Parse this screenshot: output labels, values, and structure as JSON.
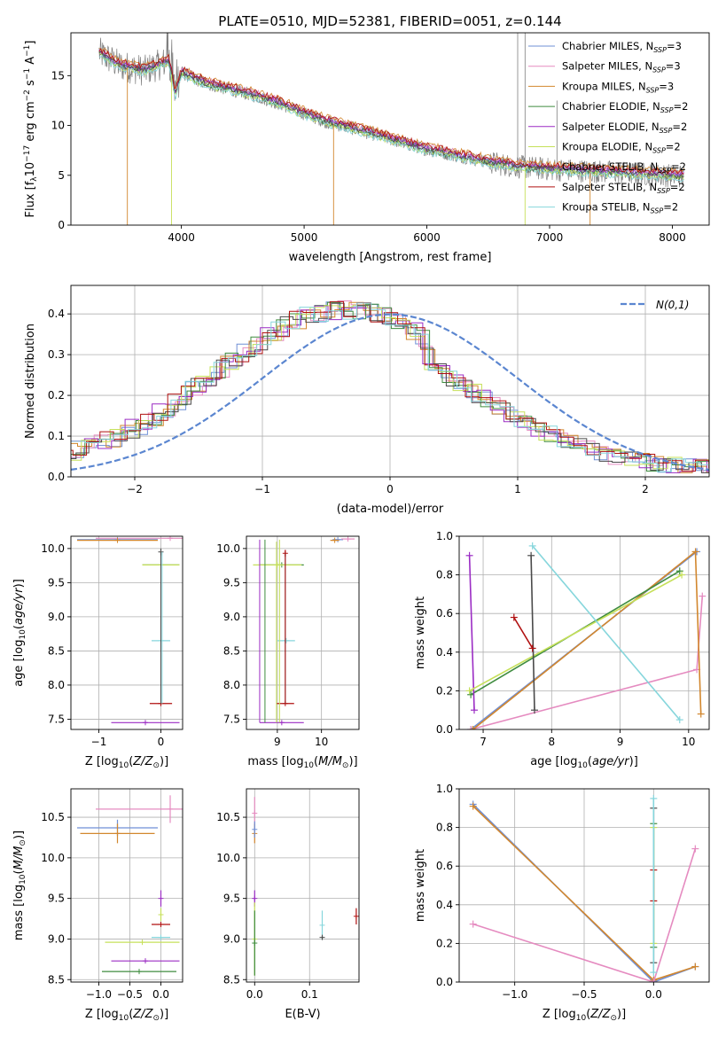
{
  "title": "PLATE=0510, MJD=52381, FIBERID=0051, z=0.144",
  "colors": {
    "Chabrier MILES": "#6f8fd6",
    "Salpeter MILES": "#e58bc0",
    "Kroupa MILES": "#d2872e",
    "Chabrier ELODIE": "#3f8c3f",
    "Salpeter ELODIE": "#9b2cc4",
    "Kroupa ELODIE": "#c6e05a",
    "Chabrier STELIB": "#4a4a4a",
    "Salpeter STELIB": "#b01010",
    "Kroupa STELIB": "#86d6dc",
    "data": "#7f7f7f",
    "gauss": "#5b86d0",
    "grid": "#b0b0b0"
  },
  "chart_data": [
    {
      "id": "spectrum",
      "type": "line",
      "xlabel": "wavelength [Angstrom, rest frame]",
      "ylabel": "Flux [f",
      "xlim": [
        3100,
        8300
      ],
      "ylim": [
        0,
        19.3
      ],
      "xticks": [
        4000,
        5000,
        6000,
        7000,
        8000
      ],
      "yticks": [
        0,
        5,
        10,
        15
      ],
      "legend_location": "upper-right",
      "legend": [
        {
          "name": "Chabrier MILES",
          "nssp": "3"
        },
        {
          "name": "Salpeter MILES",
          "nssp": "3"
        },
        {
          "name": "Kroupa MILES",
          "nssp": "3"
        },
        {
          "name": "Chabrier ELODIE",
          "nssp": "2"
        },
        {
          "name": "Salpeter ELODIE",
          "nssp": "2"
        },
        {
          "name": "Kroupa ELODIE",
          "nssp": "2"
        },
        {
          "name": "Chabrier STELIB",
          "nssp": "2"
        },
        {
          "name": "Salpeter STELIB",
          "nssp": "2"
        },
        {
          "name": "Kroupa STELIB",
          "nssp": "2"
        }
      ],
      "data_anchors": [
        [
          3330,
          17.3
        ],
        [
          3500,
          16.0
        ],
        [
          3700,
          15.5
        ],
        [
          3800,
          16.0
        ],
        [
          3900,
          16.5
        ],
        [
          3950,
          13.0
        ],
        [
          4000,
          15.3
        ],
        [
          4200,
          14.2
        ],
        [
          4400,
          13.6
        ],
        [
          4600,
          13.0
        ],
        [
          4800,
          12.2
        ],
        [
          5000,
          11.2
        ],
        [
          5200,
          10.3
        ],
        [
          5400,
          9.7
        ],
        [
          5600,
          9.0
        ],
        [
          5800,
          8.3
        ],
        [
          6000,
          7.6
        ],
        [
          6200,
          7.1
        ],
        [
          6400,
          6.6
        ],
        [
          6600,
          6.1
        ],
        [
          6800,
          5.8
        ],
        [
          7000,
          5.6
        ],
        [
          7200,
          5.5
        ],
        [
          7500,
          5.3
        ],
        [
          7800,
          5.1
        ],
        [
          8100,
          4.9
        ]
      ]
    },
    {
      "id": "residuals",
      "type": "line",
      "xlabel": "(data-model)/error",
      "ylabel": "Normed distribution",
      "xlim": [
        -2.5,
        2.5
      ],
      "ylim": [
        0,
        0.47
      ],
      "xticks": [
        -2,
        -1,
        0,
        1,
        2
      ],
      "yticks": [
        0.0,
        0.1,
        0.2,
        0.3,
        0.4
      ],
      "legend_location": "upper-right",
      "gauss_label": "N(0,1)"
    },
    {
      "id": "age-vs-Z",
      "type": "scatter",
      "xlabel": "Z [log",
      "ylabel": "age  [log",
      "xlim": [
        -1.45,
        0.35
      ],
      "ylim": [
        7.35,
        10.18
      ],
      "xticks": [
        -1,
        0
      ],
      "yticks": [
        7.5,
        8.0,
        8.5,
        9.0,
        9.5,
        10.0
      ],
      "points": [
        {
          "model": "Chabrier MILES",
          "x": -0.7,
          "y": 10.13,
          "xerr": 0.65
        },
        {
          "model": "Salpeter MILES",
          "x": 0.15,
          "y": 10.15,
          "xerr": 1.2
        },
        {
          "model": "Kroupa MILES",
          "x": -0.7,
          "y": 10.12,
          "xerr": 0.65
        },
        {
          "model": "Chabrier ELODIE",
          "x": 0.0,
          "y": 9.76,
          "xerr": 0.3
        },
        {
          "model": "Kroupa ELODIE",
          "x": 0.0,
          "y": 9.76,
          "xerr": 0.3
        },
        {
          "model": "Chabrier STELIB",
          "x": 0.0,
          "y": 9.95,
          "yerr": 0.05
        },
        {
          "model": "Kroupa STELIB",
          "x": 0.0,
          "y": 8.65,
          "xerr": 0.15
        },
        {
          "model": "Salpeter STELIB",
          "x": 0.0,
          "y": 7.73,
          "xerr": 0.18
        },
        {
          "model": "Salpeter ELODIE",
          "x": -0.25,
          "y": 7.45,
          "xerr": 0.55
        }
      ]
    },
    {
      "id": "age-vs-mass",
      "type": "scatter",
      "xlabel": "mass [log",
      "ylabel": "",
      "xlim": [
        8.3,
        10.85
      ],
      "ylim": [
        7.35,
        10.18
      ],
      "xticks": [
        9,
        10
      ],
      "yticks": [
        7.5,
        8.0,
        8.5,
        9.0,
        9.5,
        10.0
      ],
      "points": [
        {
          "model": "Chabrier MILES",
          "x": 10.37,
          "y": 10.13,
          "xerr": 0.12
        },
        {
          "model": "Salpeter MILES",
          "x": 10.6,
          "y": 10.14,
          "xerr": 0.15
        },
        {
          "model": "Kroupa MILES",
          "x": 10.3,
          "y": 10.12,
          "xerr": 0.1
        },
        {
          "model": "Chabrier ELODIE",
          "x": 9.1,
          "y": 9.76,
          "xerr": 0.5
        },
        {
          "model": "Kroupa ELODIE",
          "x": 9.0,
          "y": 9.76,
          "xerr": 0.55
        },
        {
          "model": "Salpeter STELIB",
          "x": 9.18,
          "y": 9.93,
          "yerr": 0.05
        },
        {
          "model": "Kroupa STELIB",
          "x": 9.2,
          "y": 8.65,
          "xerr": 0.2
        },
        {
          "model": "Salpeter STELIB",
          "x": 9.18,
          "y": 7.73,
          "xerr": 0.2
        },
        {
          "model": "Salpeter ELODIE",
          "x": 9.1,
          "y": 7.45,
          "xerr": 0.5
        }
      ]
    },
    {
      "id": "weight-vs-age",
      "type": "line",
      "xlabel": "age  [log",
      "ylabel": "mass weight",
      "xlim": [
        6.65,
        10.3
      ],
      "ylim": [
        0,
        1
      ],
      "xticks": [
        7,
        8,
        9,
        10
      ],
      "yticks": [
        0.0,
        0.2,
        0.4,
        0.6,
        0.8,
        1.0
      ],
      "series": [
        {
          "name": "Chabrier MILES",
          "points": [
            [
              6.82,
              0.0
            ],
            [
              10.12,
              0.92
            ]
          ]
        },
        {
          "name": "Salpeter MILES",
          "points": [
            [
              6.82,
              0.0
            ],
            [
              10.12,
              0.31
            ],
            [
              10.2,
              0.69
            ]
          ]
        },
        {
          "name": "Kroupa MILES",
          "points": [
            [
              6.85,
              0.0
            ],
            [
              10.1,
              0.92
            ],
            [
              10.18,
              0.08
            ]
          ]
        },
        {
          "name": "Chabrier ELODIE",
          "points": [
            [
              6.82,
              0.18
            ],
            [
              9.87,
              0.82
            ]
          ]
        },
        {
          "name": "Salpeter ELODIE",
          "points": [
            [
              6.8,
              0.9
            ],
            [
              6.87,
              0.1
            ]
          ]
        },
        {
          "name": "Kroupa ELODIE",
          "points": [
            [
              6.8,
              0.2
            ],
            [
              9.9,
              0.8
            ]
          ]
        },
        {
          "name": "Chabrier STELIB",
          "points": [
            [
              7.7,
              0.9
            ],
            [
              7.75,
              0.1
            ]
          ]
        },
        {
          "name": "Salpeter STELIB",
          "points": [
            [
              7.45,
              0.58
            ],
            [
              7.72,
              0.42
            ]
          ]
        },
        {
          "name": "Kroupa STELIB",
          "points": [
            [
              7.72,
              0.95
            ],
            [
              9.87,
              0.05
            ]
          ]
        }
      ]
    },
    {
      "id": "mass-vs-Z",
      "type": "scatter",
      "xlabel": "Z [log",
      "ylabel": "mass [log",
      "xlim": [
        -1.45,
        0.35
      ],
      "ylim": [
        8.47,
        10.85
      ],
      "xticks": [
        -1.0,
        -0.5,
        0.0
      ],
      "yticks": [
        8.5,
        9.0,
        9.5,
        10.0,
        10.5
      ],
      "points": [
        {
          "model": "Salpeter MILES",
          "x": 0.15,
          "y": 10.6,
          "xerr": 1.2,
          "yerr": 0.17
        },
        {
          "model": "Chabrier MILES",
          "x": -0.7,
          "y": 10.37,
          "xerr": 0.65,
          "yerr": 0.1
        },
        {
          "model": "Kroupa MILES",
          "x": -0.7,
          "y": 10.3,
          "xerr": 0.6,
          "yerr": 0.12
        },
        {
          "model": "Salpeter ELODIE",
          "x": 0.0,
          "y": 9.5,
          "yerr": 0.1
        },
        {
          "model": "Kroupa ELODIE",
          "x": 0.0,
          "y": 9.3,
          "yerr": 0.08
        },
        {
          "model": "Salpeter STELIB",
          "x": 0.0,
          "y": 9.18,
          "xerr": 0.15
        },
        {
          "model": "Kroupa STELIB",
          "x": 0.0,
          "y": 9.02,
          "xerr": 0.15
        },
        {
          "model": "Kroupa ELODIE",
          "x": -0.3,
          "y": 8.96,
          "xerr": 0.6
        },
        {
          "model": "Salpeter ELODIE",
          "x": -0.25,
          "y": 8.73,
          "xerr": 0.55
        },
        {
          "model": "Chabrier ELODIE",
          "x": -0.35,
          "y": 8.6,
          "xerr": 0.6
        }
      ]
    },
    {
      "id": "mass-vs-ebv",
      "type": "scatter",
      "xlabel": "E(B-V)",
      "ylabel": "",
      "xlim": [
        -0.015,
        0.19
      ],
      "ylim": [
        8.47,
        10.85
      ],
      "xticks": [
        0.0,
        0.1
      ],
      "yticks": [
        8.5,
        9.0,
        9.5,
        10.0,
        10.5
      ],
      "points": [
        {
          "model": "Salpeter MILES",
          "x": 0.0,
          "y": 10.55,
          "yerr": 0.2
        },
        {
          "model": "Kroupa MILES",
          "x": 0.0,
          "y": 10.3,
          "yerr": 0.12
        },
        {
          "model": "Chabrier MILES",
          "x": 0.0,
          "y": 10.35,
          "yerr": 0.1
        },
        {
          "model": "Salpeter ELODIE",
          "x": 0.0,
          "y": 9.5,
          "yerr": 0.1
        },
        {
          "model": "Kroupa ELODIE",
          "x": 0.0,
          "y": 9.0,
          "yerr": 0.45
        },
        {
          "model": "Chabrier ELODIE",
          "x": 0.0,
          "y": 8.95,
          "yerr": 0.4
        },
        {
          "model": "Kroupa STELIB",
          "x": 0.123,
          "y": 9.17,
          "yerr": 0.18
        },
        {
          "model": "Chabrier STELIB",
          "x": 0.123,
          "y": 9.02,
          "yerr": 0.02
        },
        {
          "model": "Salpeter STELIB",
          "x": 0.185,
          "y": 9.28,
          "yerr": 0.1
        }
      ]
    },
    {
      "id": "weight-vs-Z",
      "type": "line",
      "xlabel": "Z [log",
      "ylabel": "mass weight",
      "xlim": [
        -1.4,
        0.4
      ],
      "ylim": [
        0,
        1
      ],
      "xticks": [
        -1.0,
        -0.5,
        0.0
      ],
      "yticks": [
        0.0,
        0.2,
        0.4,
        0.6,
        0.8,
        1.0
      ],
      "series": [
        {
          "name": "Chabrier MILES",
          "points": [
            [
              -1.3,
              0.92
            ],
            [
              0.0,
              0.0
            ],
            [
              0.3,
              0.08
            ]
          ]
        },
        {
          "name": "Kroupa MILES",
          "points": [
            [
              -1.3,
              0.91
            ],
            [
              0.0,
              0.01
            ],
            [
              0.3,
              0.08
            ]
          ]
        },
        {
          "name": "Salpeter MILES",
          "points": [
            [
              -1.3,
              0.3
            ],
            [
              0.0,
              0.0
            ],
            [
              0.3,
              0.69
            ]
          ]
        },
        {
          "name": "Chabrier STELIB",
          "points": [
            [
              0.0,
              0.9
            ],
            [
              0.0,
              0.1
            ]
          ]
        },
        {
          "name": "Salpeter STELIB",
          "points": [
            [
              0.0,
              0.58
            ],
            [
              0.0,
              0.42
            ]
          ]
        },
        {
          "name": "Chabrier ELODIE",
          "points": [
            [
              0.0,
              0.82
            ],
            [
              0.0,
              0.18
            ]
          ]
        },
        {
          "name": "Kroupa ELODIE",
          "points": [
            [
              0.0,
              0.8
            ],
            [
              0.0,
              0.2
            ]
          ]
        },
        {
          "name": "Kroupa STELIB",
          "points": [
            [
              0.0,
              0.95
            ],
            [
              0.0,
              0.05
            ]
          ]
        }
      ]
    }
  ]
}
